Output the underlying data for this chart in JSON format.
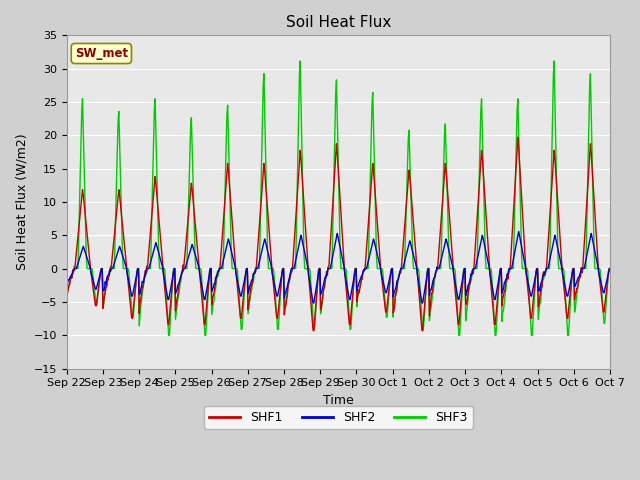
{
  "title": "Soil Heat Flux",
  "ylabel": "Soil Heat Flux (W/m2)",
  "xlabel": "Time",
  "ylim": [
    -15,
    35
  ],
  "yticks": [
    -15,
    -10,
    -5,
    0,
    5,
    10,
    15,
    20,
    25,
    30,
    35
  ],
  "x_tick_labels": [
    "Sep 22",
    "Sep 23",
    "Sep 24",
    "Sep 25",
    "Sep 26",
    "Sep 27",
    "Sep 28",
    "Sep 29",
    "Sep 30",
    "Oct 1",
    "Oct 2",
    "Oct 3",
    "Oct 4",
    "Oct 5",
    "Oct 6",
    "Oct 7"
  ],
  "shf1_color": "#cc0000",
  "shf2_color": "#0000cc",
  "shf3_color": "#00cc00",
  "shf1_label": "SHF1",
  "shf2_label": "SHF2",
  "shf3_label": "SHF3",
  "annotation_text": "SW_met",
  "annotation_color": "#880000",
  "annotation_bg": "#ffffcc",
  "annotation_edge": "#888800",
  "plot_bg_color": "#e8e8e8",
  "fig_bg_color": "#d0d0d0",
  "grid_color": "#ffffff",
  "title_fontsize": 11,
  "label_fontsize": 9,
  "tick_fontsize": 8,
  "day_peaks_shf1": [
    12,
    12,
    14,
    13,
    16,
    16,
    18,
    19,
    16,
    15,
    16,
    18,
    20,
    18,
    19
  ],
  "day_peaks_shf3": [
    27,
    25,
    27,
    24,
    26,
    31,
    33,
    30,
    28,
    22,
    23,
    27,
    27,
    33,
    31
  ],
  "day_troughs_shf1": [
    -6,
    -8,
    -9,
    -9,
    -8,
    -8,
    -10,
    -9,
    -7,
    -10,
    -9,
    -9,
    -8,
    -8,
    -7
  ],
  "day_troughs_shf3": [
    -6,
    -8,
    -11,
    -11,
    -10,
    -10,
    -10,
    -10,
    -8,
    -10,
    -11,
    -11,
    -11,
    -11,
    -9
  ]
}
